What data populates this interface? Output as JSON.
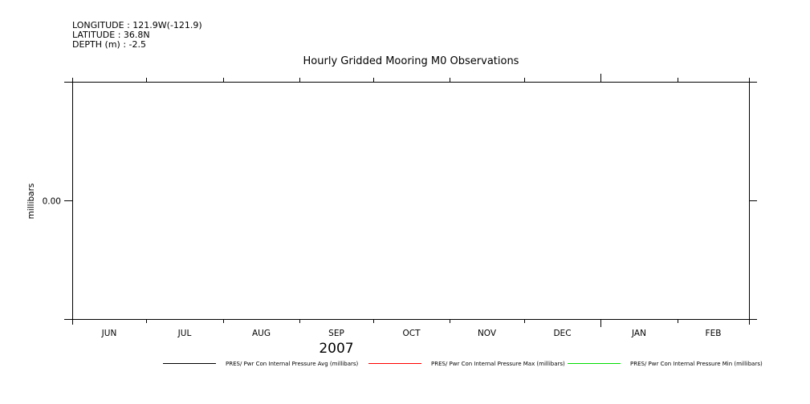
{
  "header": {
    "longitude": "LONGITUDE : 121.9W(-121.9)",
    "latitude": "LATITUDE : 36.8N",
    "depth": "DEPTH (m) : -2.5"
  },
  "chart_data": {
    "type": "line",
    "title": "Hourly Gridded Mooring M0 Observations",
    "xlabel": "2007",
    "ylabel": "millibars",
    "x_tick_labels": [
      "JUN",
      "JUL",
      "AUG",
      "SEP",
      "OCT",
      "NOV",
      "DEC",
      "JAN",
      "FEB"
    ],
    "y_tick_labels": [
      "0.00"
    ],
    "y_ticks": [
      0
    ],
    "ylim": [
      -1,
      1
    ],
    "grid": false,
    "legend_position": "bottom",
    "series": [
      {
        "name": "PRES/ Pwr Con Internal Pressure Avg (millibars)",
        "color": "#000000",
        "values": []
      },
      {
        "name": "PRES/ Pwr Con Internal Pressure Max (millibars)",
        "color": "#ff0000",
        "values": []
      },
      {
        "name": "PRES/ Pwr Con Internal Pressure Min (millibars)",
        "color": "#00dd00",
        "values": []
      }
    ]
  }
}
